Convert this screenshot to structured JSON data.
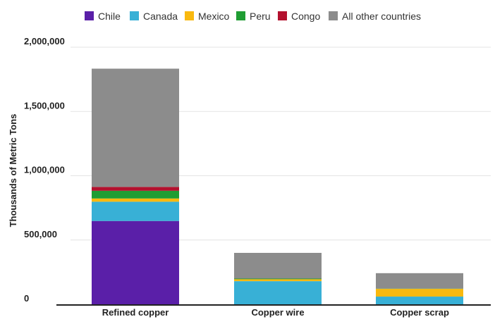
{
  "chart_data": {
    "type": "bar",
    "stacked": true,
    "categories": [
      "Refined copper",
      "Copper wire",
      "Copper scrap"
    ],
    "series": [
      {
        "name": "Chile",
        "color": "#5a1fa8",
        "values": [
          648000,
          0,
          0
        ]
      },
      {
        "name": "Canada",
        "color": "#38b0d6",
        "values": [
          150000,
          180000,
          60000
        ]
      },
      {
        "name": "Mexico",
        "color": "#f9b90f",
        "values": [
          25000,
          15000,
          60000
        ]
      },
      {
        "name": "Peru",
        "color": "#1f9d33",
        "values": [
          60000,
          5000,
          2000
        ]
      },
      {
        "name": "Congo",
        "color": "#b3112e",
        "values": [
          30000,
          0,
          0
        ]
      },
      {
        "name": "All other countries",
        "color": "#8c8c8c",
        "values": [
          920000,
          200000,
          120000
        ]
      }
    ],
    "ylabel": "Thousands of Metric Tons",
    "ylim": [
      0,
      2000000
    ],
    "yticks": [
      0,
      500000,
      1000000,
      1500000,
      2000000
    ],
    "ytick_labels": [
      "0",
      "500,000",
      "1,000,000",
      "1,500,000",
      "2,000,000"
    ],
    "grid": true,
    "legend_position": "top"
  }
}
